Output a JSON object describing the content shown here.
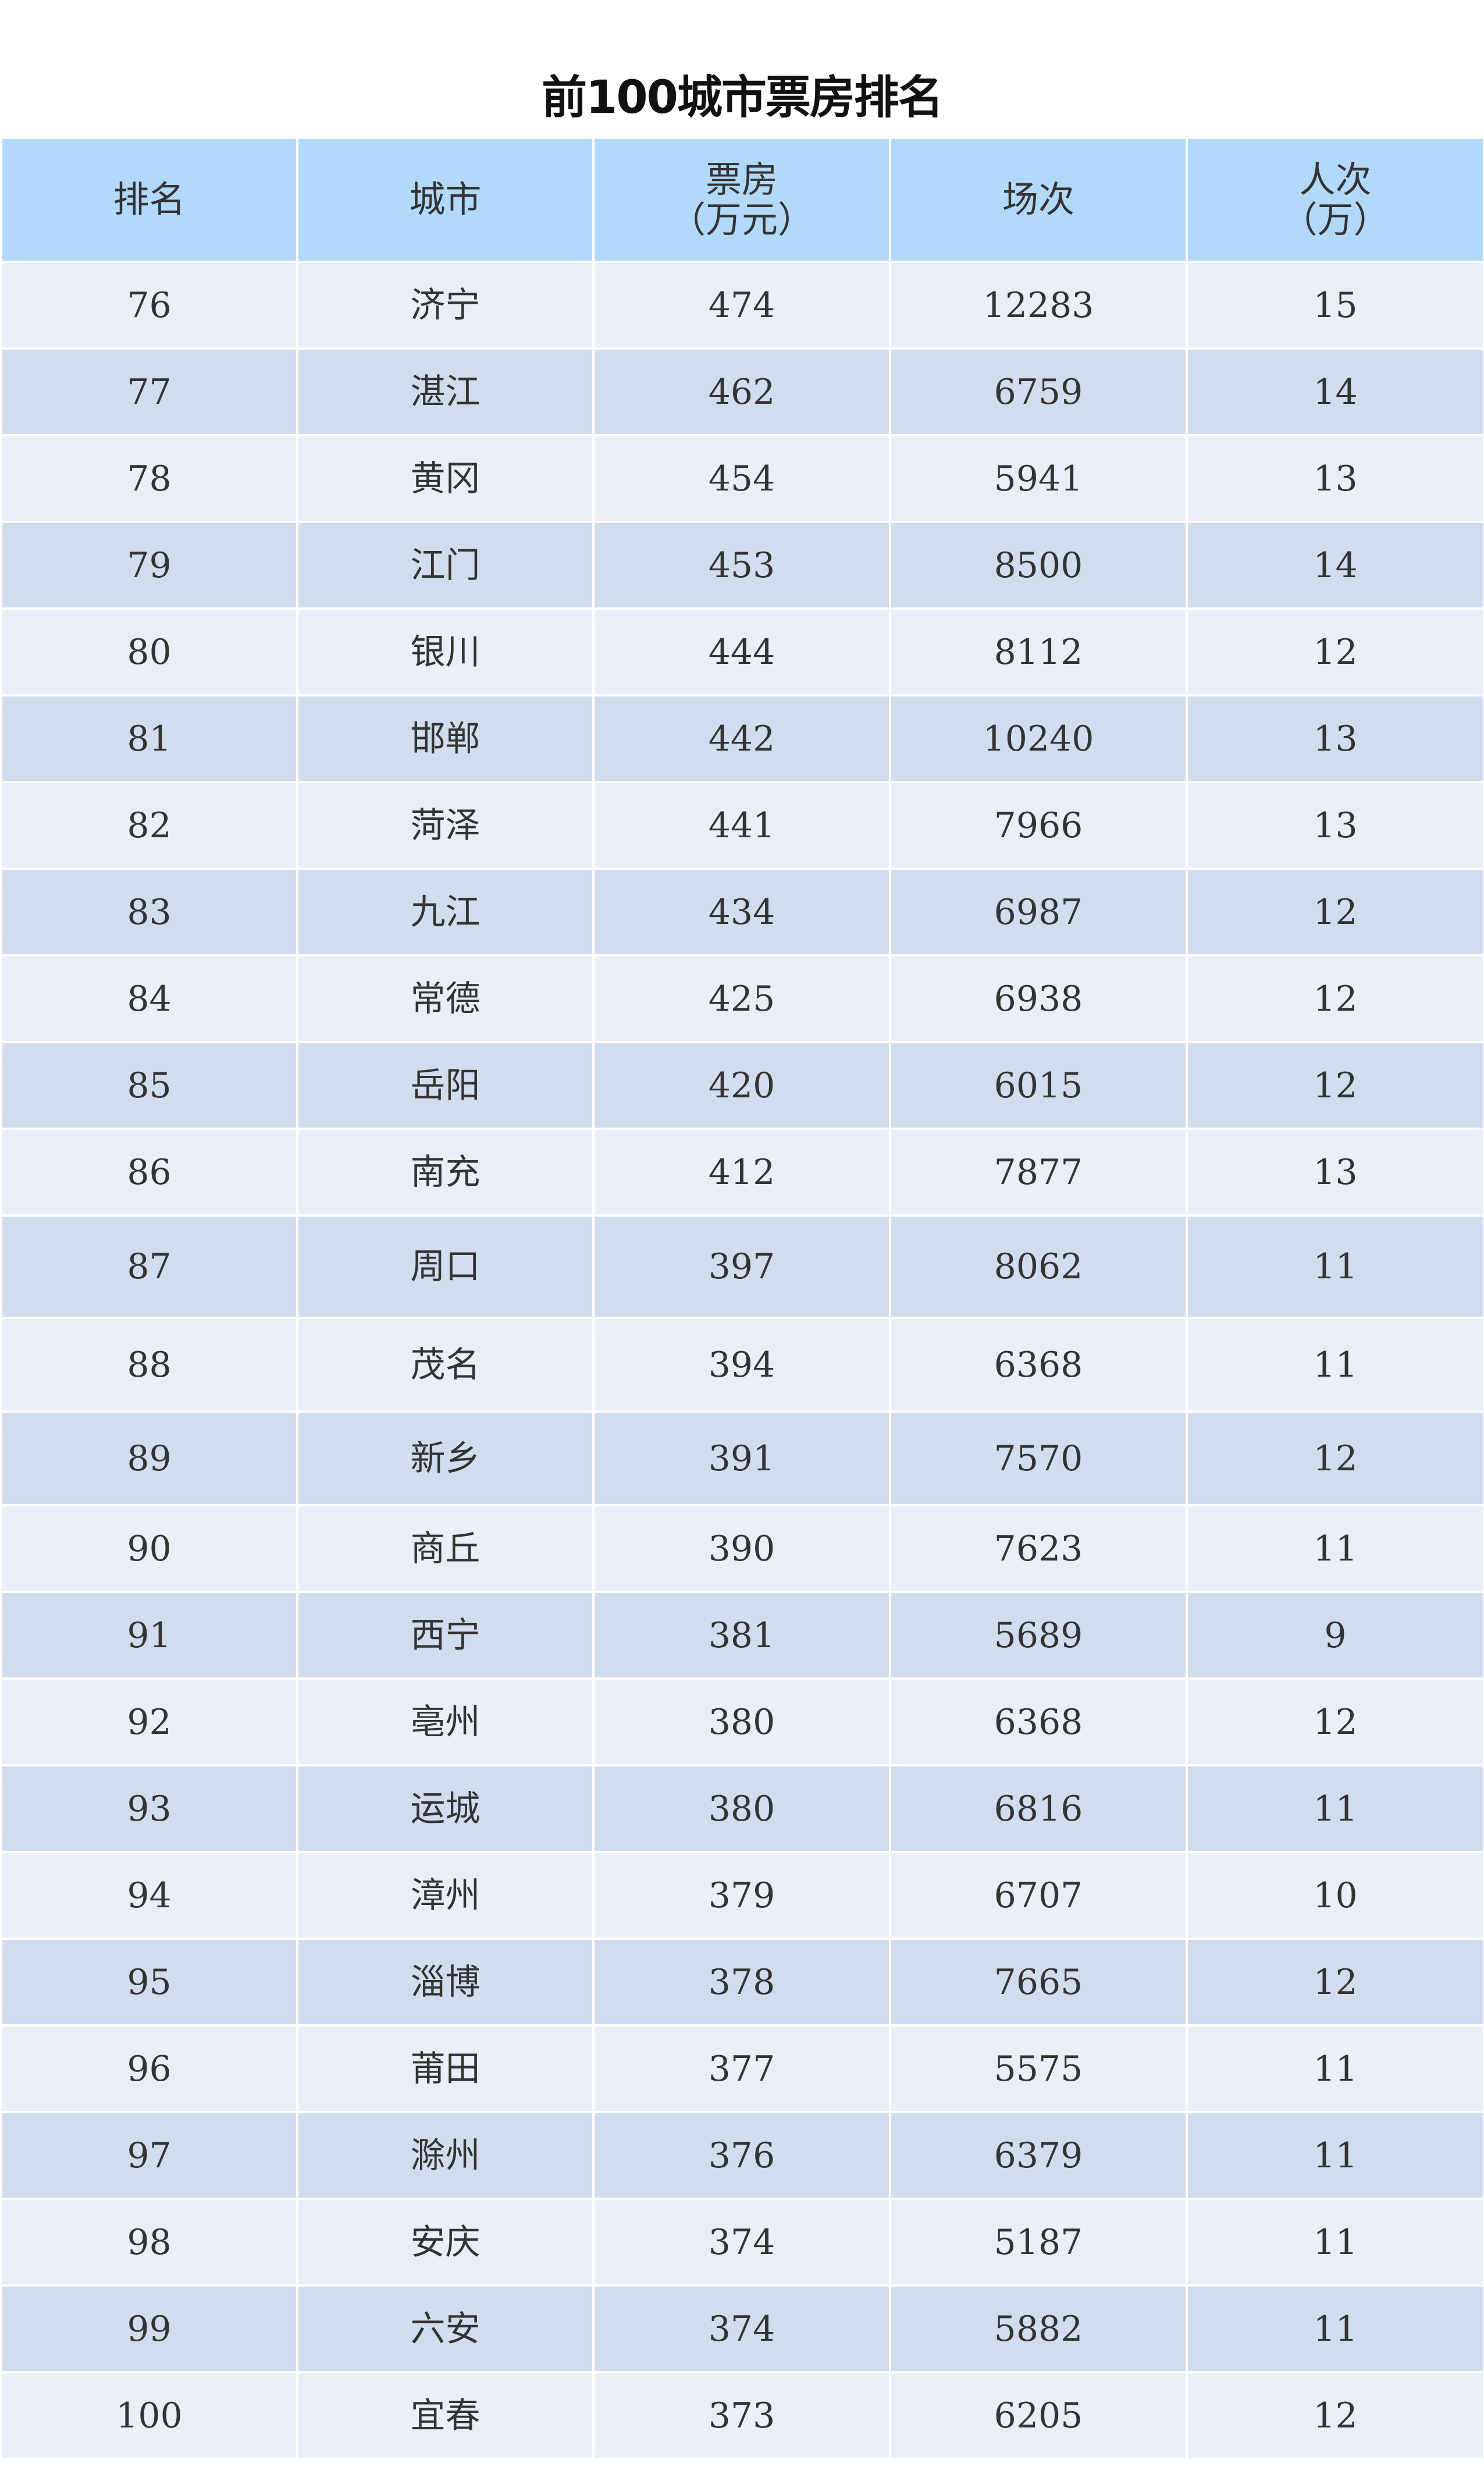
{
  "title": "前100城市票房排名",
  "colors": {
    "header_bg": "#b2d8fa",
    "row_light": "#e9eef7",
    "row_dark": "#d1ddee"
  },
  "columns": [
    {
      "line1": "排名",
      "line2": ""
    },
    {
      "line1": "城市",
      "line2": ""
    },
    {
      "line1": "票房",
      "line2": "（万元）"
    },
    {
      "line1": "场次",
      "line2": ""
    },
    {
      "line1": "人次",
      "line2": "（万）"
    }
  ],
  "rows": [
    [
      "76",
      "济宁",
      "474",
      "12283",
      "15"
    ],
    [
      "77",
      "湛江",
      "462",
      "6759",
      "14"
    ],
    [
      "78",
      "黄冈",
      "454",
      "5941",
      "13"
    ],
    [
      "79",
      "江门",
      "453",
      "8500",
      "14"
    ],
    [
      "80",
      "银川",
      "444",
      "8112",
      "12"
    ],
    [
      "81",
      "邯郸",
      "442",
      "10240",
      "13"
    ],
    [
      "82",
      "菏泽",
      "441",
      "7966",
      "13"
    ],
    [
      "83",
      "九江",
      "434",
      "6987",
      "12"
    ],
    [
      "84",
      "常德",
      "425",
      "6938",
      "12"
    ],
    [
      "85",
      "岳阳",
      "420",
      "6015",
      "12"
    ],
    [
      "86",
      "南充",
      "412",
      "7877",
      "13"
    ],
    [
      "87",
      "周口",
      "397",
      "8062",
      "11"
    ],
    [
      "88",
      "茂名",
      "394",
      "6368",
      "11"
    ],
    [
      "89",
      "新乡",
      "391",
      "7570",
      "12"
    ],
    [
      "90",
      "商丘",
      "390",
      "7623",
      "11"
    ],
    [
      "91",
      "西宁",
      "381",
      "5689",
      "9"
    ],
    [
      "92",
      "亳州",
      "380",
      "6368",
      "12"
    ],
    [
      "93",
      "运城",
      "380",
      "6816",
      "11"
    ],
    [
      "94",
      "漳州",
      "379",
      "6707",
      "10"
    ],
    [
      "95",
      "淄博",
      "378",
      "7665",
      "12"
    ],
    [
      "96",
      "莆田",
      "377",
      "5575",
      "11"
    ],
    [
      "97",
      "滁州",
      "376",
      "6379",
      "11"
    ],
    [
      "98",
      "安庆",
      "374",
      "5187",
      "11"
    ],
    [
      "99",
      "六安",
      "374",
      "5882",
      "11"
    ],
    [
      "100",
      "宜春",
      "373",
      "6205",
      "12"
    ]
  ]
}
